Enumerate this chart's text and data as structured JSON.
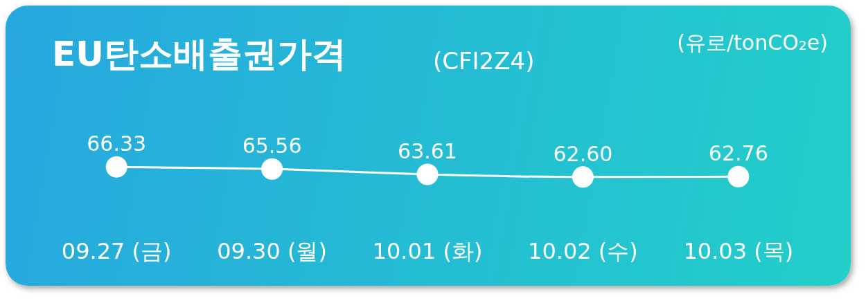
{
  "chart_data": {
    "type": "line",
    "title": "EU탄소배출권가격",
    "subtitle": "(CFI2Z4)",
    "annotations": [
      "(유로/tonCO₂e)"
    ],
    "categories": [
      "09.27 (금)",
      "09.30 (월)",
      "10.01 (화)",
      "10.02 (수)",
      "10.03 (목)"
    ],
    "values": [
      66.33,
      65.56,
      63.61,
      62.6,
      62.76
    ],
    "value_labels": [
      "66.33",
      "65.56",
      "63.61",
      "62.60",
      "62.76"
    ],
    "color": "#ffffff",
    "marker": "circle",
    "tick_labels": "x"
  }
}
